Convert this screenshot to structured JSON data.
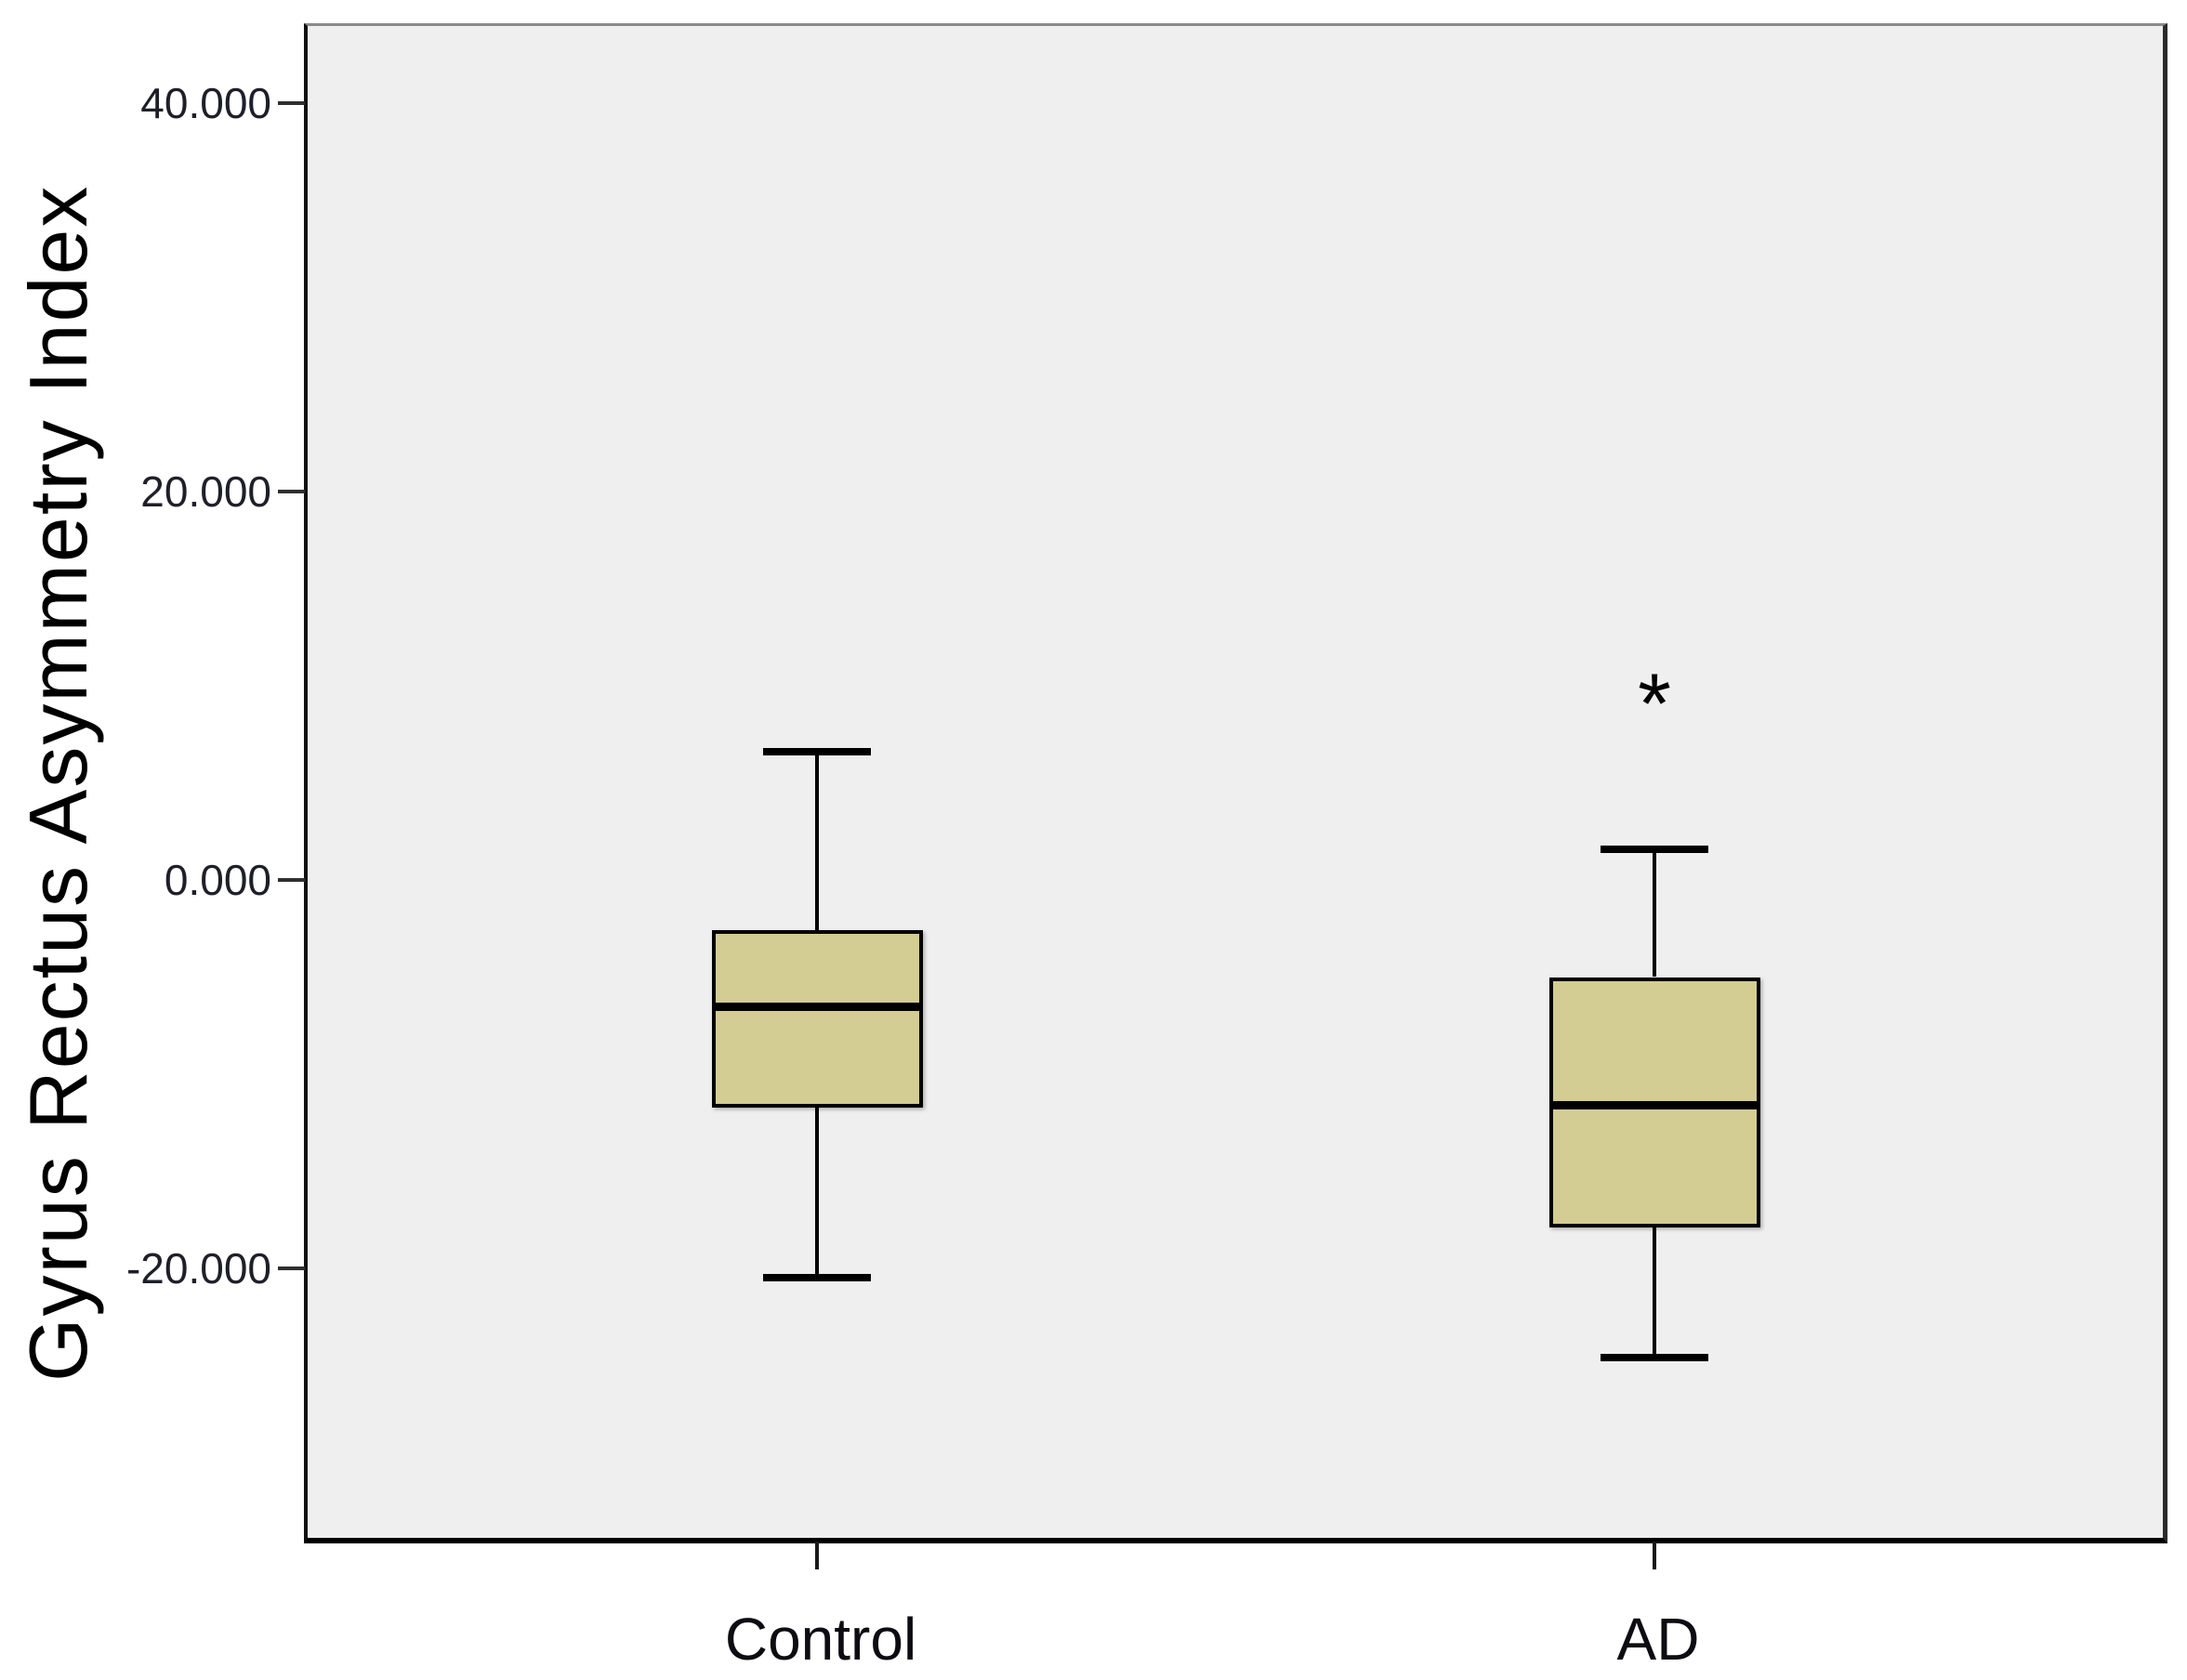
{
  "figure": {
    "background": "#ffffff",
    "plot_background": "#efefef",
    "box_fill": "#d3cc93",
    "line_color": "#000000",
    "tick_label_color": "#1f1f29"
  },
  "chart_data": {
    "type": "box",
    "title": "",
    "xlabel": "",
    "ylabel": "Gyrus Rectus Asymmetry Index",
    "categories": [
      "Control",
      "AD"
    ],
    "ylim": [
      -34.2,
      44.0
    ],
    "grid": false,
    "legend": null,
    "yticks": [
      {
        "value": 40,
        "label": "40.000"
      },
      {
        "value": 20,
        "label": "20.000"
      },
      {
        "value": 0,
        "label": "0.000"
      },
      {
        "value": -20,
        "label": "-20.000"
      }
    ],
    "series": [
      {
        "name": "Control",
        "whisker_low": -20.5,
        "q1": -11.7,
        "median": -6.5,
        "q3": -2.6,
        "whisker_high": 6.6,
        "outliers": []
      },
      {
        "name": "AD",
        "whisker_low": -24.6,
        "q1": -17.9,
        "median": -11.6,
        "q3": -5.0,
        "whisker_high": 1.6,
        "outliers": [
          {
            "value": 9.8,
            "marker": "*"
          }
        ]
      }
    ]
  }
}
